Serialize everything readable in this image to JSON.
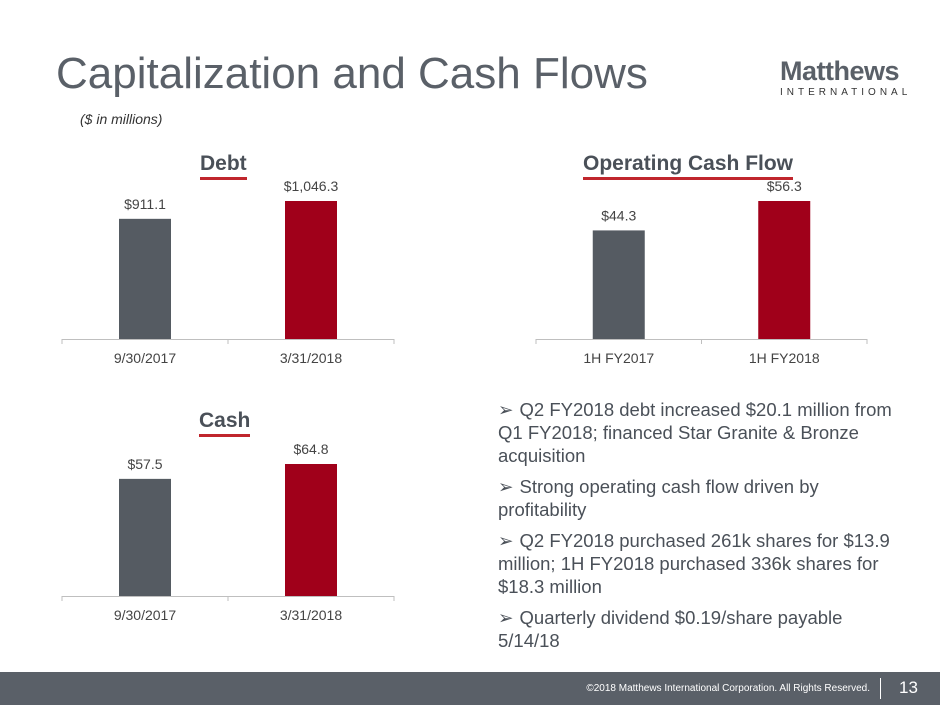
{
  "header": {
    "title": "Capitalization and Cash Flows",
    "subtitle": "($ in millions)",
    "logo_main": "Matthews",
    "logo_sub": "INTERNATIONAL"
  },
  "colors": {
    "gray_bar": "#555b62",
    "red_bar": "#a0001a",
    "underline": "#c0262d"
  },
  "chart_data": [
    {
      "type": "bar",
      "title": "Debt",
      "categories": [
        "9/30/2017",
        "3/31/2018"
      ],
      "values": [
        911.1,
        1046.3
      ],
      "labels": [
        "$911.1",
        "$1,046.3"
      ],
      "ylim": [
        0,
        1046.3
      ]
    },
    {
      "type": "bar",
      "title": "Operating Cash Flow",
      "categories": [
        "1H FY2017",
        "1H FY2018"
      ],
      "values": [
        44.3,
        56.3
      ],
      "labels": [
        "$44.3",
        "$56.3"
      ],
      "ylim": [
        0,
        56.3
      ]
    },
    {
      "type": "bar",
      "title": "Cash",
      "categories": [
        "9/30/2017",
        "3/31/2018"
      ],
      "values": [
        57.5,
        64.8
      ],
      "labels": [
        "$57.5",
        "$64.8"
      ],
      "ylim": [
        0,
        64.8
      ]
    }
  ],
  "bullets": [
    "Q2 FY2018 debt increased $20.1 million from Q1 FY2018; financed Star Granite & Bronze acquisition",
    "Strong operating cash flow driven by profitability",
    "Q2 FY2018 purchased 261k shares for $13.9 million; 1H FY2018 purchased 336k shares for $18.3 million",
    "Quarterly dividend $0.19/share payable 5/14/18"
  ],
  "footer": {
    "copyright": "©2018 Matthews International Corporation. All Rights Reserved.",
    "page": "13"
  }
}
